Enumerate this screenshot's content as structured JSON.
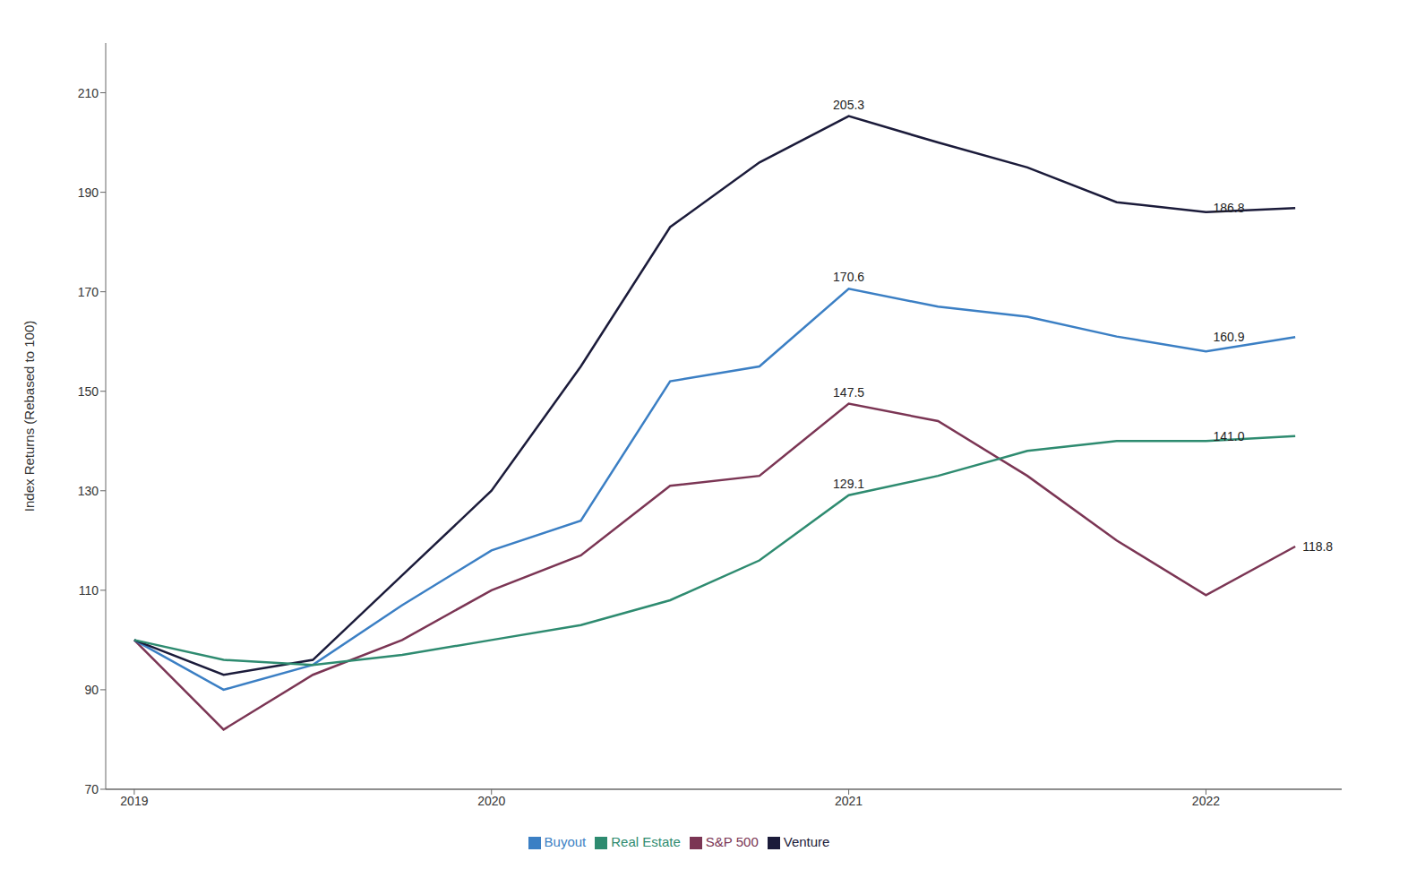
{
  "chart_data": {
    "type": "line",
    "x": [
      2019.0,
      2019.25,
      2019.5,
      2019.75,
      2020.0,
      2020.25,
      2020.5,
      2020.75,
      2021.0,
      2021.25,
      2021.5,
      2021.75,
      2022.0,
      2022.25
    ],
    "xlim": [
      2018.92,
      2022.38
    ],
    "xticks": [
      2019,
      2020,
      2021,
      2022
    ],
    "ylim": [
      70,
      220
    ],
    "yticks": [
      70,
      90,
      110,
      130,
      150,
      170,
      190,
      210
    ],
    "y_label": "Index Returns (Rebased to 100)",
    "grid": false,
    "legend": "bottom",
    "series": [
      {
        "name": "S&P 500",
        "color": "#7B3554",
        "values": [
          100,
          82,
          93,
          100,
          110,
          117,
          131,
          133,
          147.5,
          144,
          133,
          120,
          109,
          118.8
        ]
      },
      {
        "name": "Buyout",
        "color": "#3B7FC4",
        "values": [
          100,
          90,
          95,
          107,
          118,
          124,
          152,
          155,
          170.6,
          167,
          165,
          161,
          158,
          160.9
        ]
      },
      {
        "name": "Venture",
        "color": "#1B1B3A",
        "values": [
          100,
          93,
          96,
          113,
          130,
          155,
          183,
          196,
          205.3,
          200,
          195,
          188,
          186,
          186.8
        ]
      },
      {
        "name": "Real Estate",
        "color": "#2E8B70",
        "values": [
          100,
          96,
          95,
          97,
          100,
          103,
          108,
          116,
          129.1,
          133,
          138,
          140,
          140,
          141.0
        ]
      }
    ],
    "annotations": [
      {
        "text": "205.3",
        "x": 2021.0,
        "y": 205.3,
        "position": "top"
      },
      {
        "text": "186.8",
        "x": 2022.0,
        "y": 186.8,
        "position": "right"
      },
      {
        "text": "170.6",
        "x": 2021.0,
        "y": 170.6,
        "position": "top"
      },
      {
        "text": "160.9",
        "x": 2022.0,
        "y": 160.9,
        "position": "right"
      },
      {
        "text": "147.5",
        "x": 2021.0,
        "y": 147.5,
        "position": "top"
      },
      {
        "text": "118.8",
        "x": 2022.25,
        "y": 118.8,
        "position": "right"
      },
      {
        "text": "129.1",
        "x": 2021.0,
        "y": 129.1,
        "position": "top"
      },
      {
        "text": "141.0",
        "x": 2022.0,
        "y": 141.0,
        "position": "right"
      }
    ]
  }
}
